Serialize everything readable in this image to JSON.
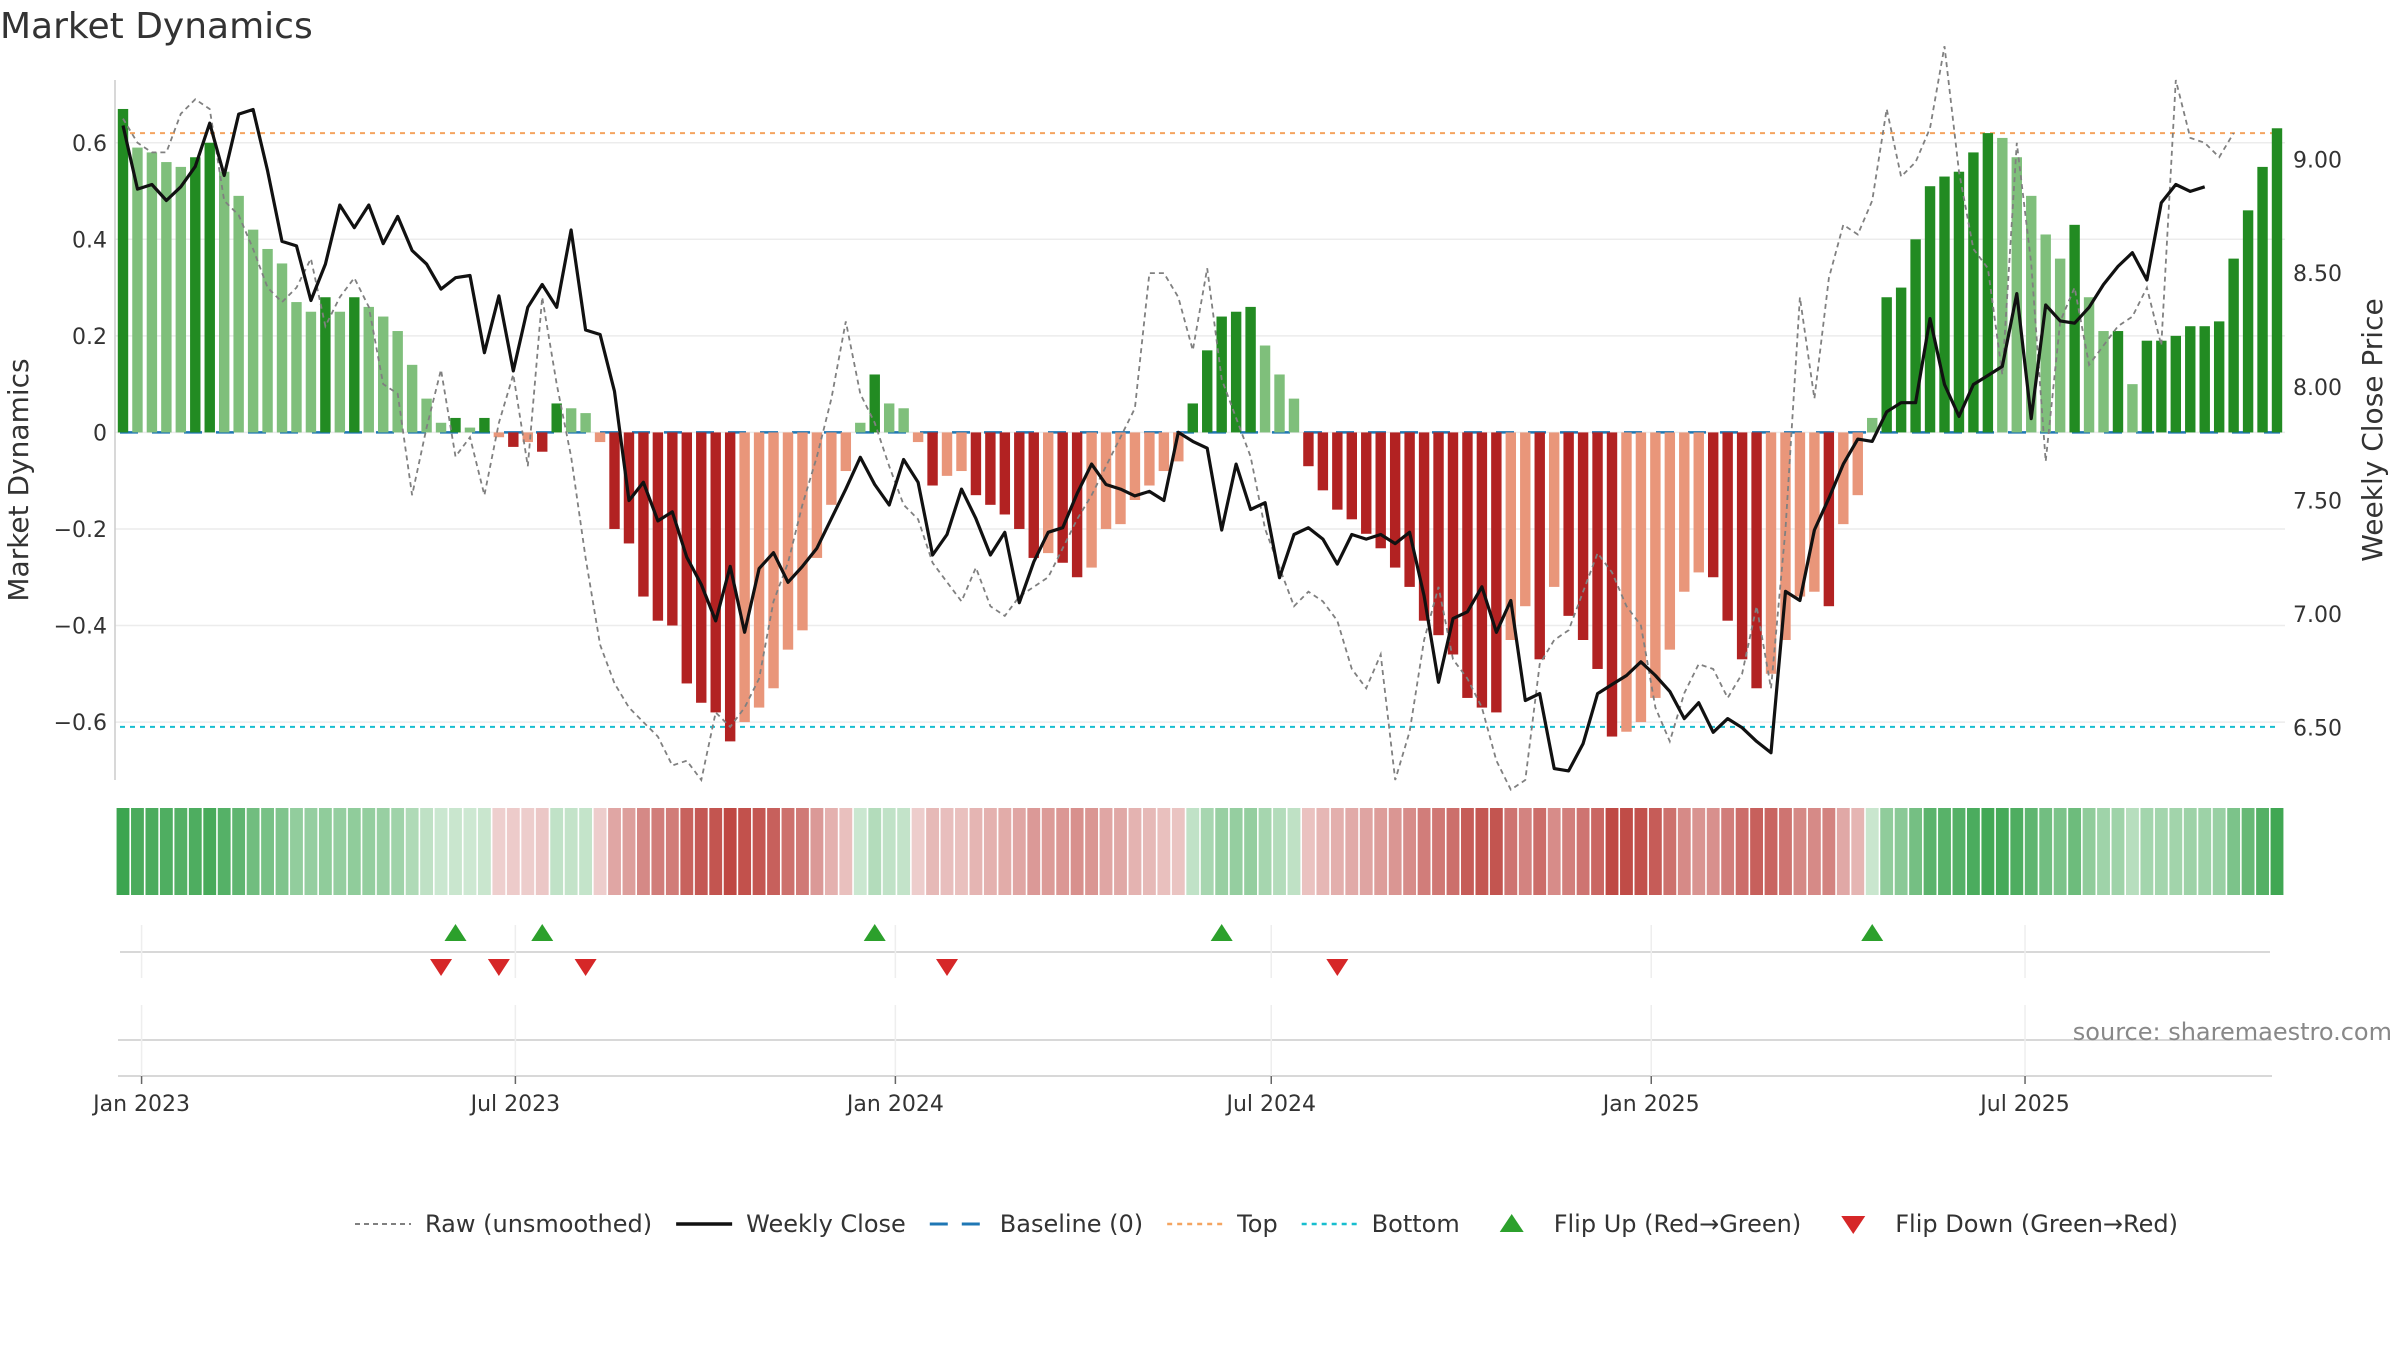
{
  "title": "Market Dynamics",
  "source": "source: sharemaestro.com",
  "colors": {
    "strong_green": "#228b22",
    "light_green": "#7fbf7b",
    "strong_red": "#b22222",
    "light_red": "#e9967a",
    "close_line": "#111111",
    "raw_line": "#808080",
    "baseline": "#1f77b4",
    "top_line": "#f4a460",
    "bottom_line": "#17becf",
    "flip_up": "#2ca02c",
    "flip_down": "#d62728"
  },
  "chart_data": {
    "type": "bar",
    "start_date": "2022-12-23",
    "ylabel_left": "Market Dynamics",
    "ylabel_right": "Weekly Close Price",
    "ylim_left": [
      -0.72,
      0.73
    ],
    "ylim_right": [
      6.27,
      9.35
    ],
    "left_ticks": [
      {
        "value": 0.6,
        "label": "0.6"
      },
      {
        "value": 0.4,
        "label": "0.4"
      },
      {
        "value": 0.2,
        "label": "0.2"
      },
      {
        "value": 0,
        "label": "0"
      },
      {
        "value": -0.2,
        "label": "−0.2"
      },
      {
        "value": -0.4,
        "label": "−0.4"
      },
      {
        "value": -0.6,
        "label": "−0.6"
      }
    ],
    "right_ticks": [
      {
        "value": 9.0,
        "label": "9.00"
      },
      {
        "value": 8.5,
        "label": "8.50"
      },
      {
        "value": 8.0,
        "label": "8.00"
      },
      {
        "value": 7.5,
        "label": "7.50"
      },
      {
        "value": 7.0,
        "label": "7.00"
      },
      {
        "value": 6.5,
        "label": "6.50"
      }
    ],
    "x_ticks": [
      {
        "date": "2023-01-01",
        "label": "Jan 2023"
      },
      {
        "date": "2023-07-01",
        "label": "Jul 2023"
      },
      {
        "date": "2024-01-01",
        "label": "Jan 2024"
      },
      {
        "date": "2024-07-01",
        "label": "Jul 2024"
      },
      {
        "date": "2025-01-01",
        "label": "Jan 2025"
      },
      {
        "date": "2025-07-01",
        "label": "Jul 2025"
      }
    ],
    "top_level": 0.62,
    "bottom_level": -0.61,
    "baseline_level": 0,
    "dynamics": [
      0.67,
      0.59,
      0.58,
      0.56,
      0.55,
      0.57,
      0.6,
      0.54,
      0.49,
      0.42,
      0.38,
      0.35,
      0.27,
      0.25,
      0.28,
      0.25,
      0.28,
      0.26,
      0.24,
      0.21,
      0.14,
      0.07,
      0.02,
      0.03,
      0.01,
      0.03,
      -0.01,
      -0.03,
      -0.02,
      -0.04,
      0.06,
      0.05,
      0.04,
      -0.02,
      -0.2,
      -0.23,
      -0.34,
      -0.39,
      -0.4,
      -0.52,
      -0.56,
      -0.58,
      -0.64,
      -0.6,
      -0.57,
      -0.53,
      -0.45,
      -0.41,
      -0.26,
      -0.15,
      -0.08,
      0.02,
      0.12,
      0.06,
      0.05,
      -0.02,
      -0.11,
      -0.09,
      -0.08,
      -0.13,
      -0.15,
      -0.17,
      -0.2,
      -0.26,
      -0.25,
      -0.27,
      -0.3,
      -0.28,
      -0.2,
      -0.19,
      -0.14,
      -0.11,
      -0.08,
      -0.06,
      0.06,
      0.17,
      0.24,
      0.25,
      0.26,
      0.18,
      0.12,
      0.07,
      -0.07,
      -0.12,
      -0.16,
      -0.18,
      -0.21,
      -0.24,
      -0.28,
      -0.32,
      -0.39,
      -0.42,
      -0.46,
      -0.55,
      -0.57,
      -0.58,
      -0.43,
      -0.36,
      -0.47,
      -0.32,
      -0.38,
      -0.43,
      -0.49,
      -0.63,
      -0.62,
      -0.6,
      -0.55,
      -0.45,
      -0.33,
      -0.29,
      -0.3,
      -0.39,
      -0.47,
      -0.53,
      -0.5,
      -0.43,
      -0.34,
      -0.33,
      -0.36,
      -0.19,
      -0.13,
      0.03,
      0.28,
      0.3,
      0.4,
      0.51,
      0.53,
      0.54,
      0.58,
      0.62,
      0.61,
      0.57,
      0.49,
      0.41,
      0.36,
      0.43,
      0.28,
      0.21,
      0.21,
      0.1,
      0.19,
      0.19,
      0.2,
      0.22,
      0.22,
      0.23,
      0.36,
      0.46,
      0.55,
      0.63
    ],
    "raw": [
      0.65,
      0.6,
      0.58,
      0.58,
      0.66,
      0.69,
      0.67,
      0.48,
      0.45,
      0.38,
      0.3,
      0.27,
      0.3,
      0.36,
      0.22,
      0.28,
      0.32,
      0.26,
      0.1,
      0.08,
      -0.13,
      0.01,
      0.13,
      -0.05,
      -0.01,
      -0.13,
      0.02,
      0.12,
      -0.07,
      0.28,
      0.1,
      -0.05,
      -0.26,
      -0.44,
      -0.52,
      -0.57,
      -0.6,
      -0.63,
      -0.69,
      -0.68,
      -0.72,
      -0.58,
      -0.61,
      -0.57,
      -0.51,
      -0.35,
      -0.27,
      -0.15,
      -0.05,
      0.07,
      0.23,
      0.08,
      0.02,
      -0.07,
      -0.15,
      -0.18,
      -0.27,
      -0.31,
      -0.35,
      -0.28,
      -0.36,
      -0.38,
      -0.34,
      -0.32,
      -0.3,
      -0.24,
      -0.18,
      -0.13,
      -0.07,
      -0.01,
      0.05,
      0.33,
      0.33,
      0.28,
      0.17,
      0.34,
      0.11,
      0.03,
      -0.05,
      -0.2,
      -0.28,
      -0.36,
      -0.33,
      -0.35,
      -0.39,
      -0.49,
      -0.53,
      -0.46,
      -0.72,
      -0.62,
      -0.43,
      -0.32,
      -0.47,
      -0.51,
      -0.57,
      -0.68,
      -0.74,
      -0.72,
      -0.48,
      -0.43,
      -0.41,
      -0.33,
      -0.25,
      -0.29,
      -0.36,
      -0.4,
      -0.57,
      -0.64,
      -0.54,
      -0.48,
      -0.49,
      -0.55,
      -0.5,
      -0.36,
      -0.53,
      -0.2,
      0.28,
      0.07,
      0.32,
      0.43,
      0.41,
      0.48,
      0.67,
      0.53,
      0.56,
      0.63,
      0.8,
      0.54,
      0.38,
      0.34,
      0.12,
      0.6,
      0.35,
      -0.06,
      0.23,
      0.3,
      0.14,
      0.18,
      0.22,
      0.24,
      0.3,
      0.18,
      0.73,
      0.61,
      0.6,
      0.57,
      0.62
    ],
    "close": [
      9.15,
      8.87,
      8.89,
      8.82,
      8.88,
      8.97,
      9.16,
      8.93,
      9.2,
      9.22,
      8.95,
      8.64,
      8.62,
      8.38,
      8.54,
      8.8,
      8.7,
      8.8,
      8.63,
      8.75,
      8.6,
      8.54,
      8.43,
      8.48,
      8.49,
      8.15,
      8.4,
      8.07,
      8.35,
      8.45,
      8.35,
      8.69,
      8.25,
      8.23,
      7.98,
      7.5,
      7.58,
      7.41,
      7.45,
      7.25,
      7.13,
      6.97,
      7.21,
      6.92,
      7.2,
      7.27,
      7.14,
      7.21,
      7.29,
      7.42,
      7.55,
      7.69,
      7.57,
      7.48,
      7.68,
      7.58,
      7.26,
      7.35,
      7.55,
      7.42,
      7.26,
      7.36,
      7.05,
      7.23,
      7.36,
      7.38,
      7.53,
      7.66,
      7.57,
      7.55,
      7.52,
      7.54,
      7.5,
      7.8,
      7.76,
      7.73,
      7.37,
      7.66,
      7.46,
      7.49,
      7.16,
      7.35,
      7.38,
      7.33,
      7.22,
      7.35,
      7.33,
      7.35,
      7.31,
      7.36,
      7.08,
      6.7,
      6.98,
      7.01,
      7.12,
      6.92,
      7.06,
      6.62,
      6.65,
      6.32,
      6.31,
      6.43,
      6.65,
      6.69,
      6.73,
      6.79,
      6.73,
      6.66,
      6.54,
      6.61,
      6.48,
      6.54,
      6.5,
      6.44,
      6.39,
      7.1,
      7.06,
      7.37,
      7.51,
      7.66,
      7.77,
      7.76,
      7.89,
      7.93,
      7.93,
      8.3,
      8.01,
      7.87,
      8.01,
      8.05,
      8.09,
      8.41,
      7.86,
      8.36,
      8.29,
      8.28,
      8.35,
      8.45,
      8.53,
      8.59,
      8.47,
      8.81,
      8.89,
      8.86,
      8.88
    ],
    "flips_up_index": [
      23,
      29,
      52,
      76,
      121
    ],
    "flips_down_index": [
      22,
      26,
      32,
      57,
      84
    ]
  },
  "legend": [
    {
      "label": "Raw (unsmoothed)",
      "kind": "raw"
    },
    {
      "label": "Weekly Close",
      "kind": "close"
    },
    {
      "label": "Baseline (0)",
      "kind": "baseline"
    },
    {
      "label": "Top",
      "kind": "top"
    },
    {
      "label": "Bottom",
      "kind": "bottom"
    },
    {
      "label": "Flip Up (Red→Green)",
      "kind": "up"
    },
    {
      "label": "Flip Down (Green→Red)",
      "kind": "down"
    }
  ]
}
